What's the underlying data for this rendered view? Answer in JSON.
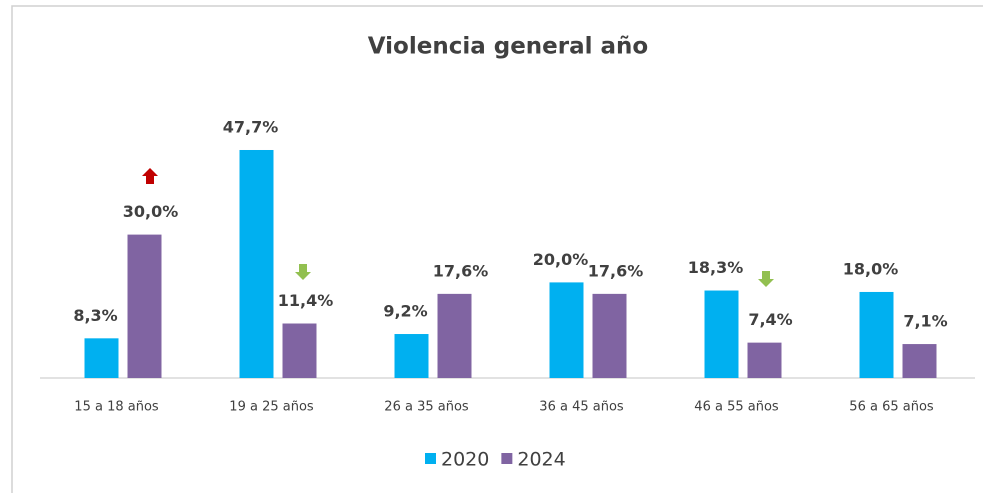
{
  "chart_data": {
    "type": "bar",
    "title": "Violencia general año",
    "categories": [
      "15 a 18 años",
      "19 a 25 años",
      "26 a 35 años",
      "36 a 45 años",
      "46 a 55 años",
      "56 a 65 años"
    ],
    "series": [
      {
        "name": "2020",
        "color": "#00b0f0",
        "values": [
          8.3,
          47.7,
          9.2,
          20.0,
          18.3,
          18.0
        ],
        "value_labels": [
          "8,3%",
          "47,7%",
          "9,2%",
          "20,0%",
          "18,3%",
          "18,0%"
        ]
      },
      {
        "name": "2024",
        "color": "#8064a2",
        "values": [
          30.0,
          11.4,
          17.6,
          17.6,
          7.4,
          7.1
        ],
        "value_labels": [
          "30,0%",
          "11,4%",
          "17,6%",
          "17,6%",
          "7,4%",
          "7,1%"
        ]
      }
    ],
    "ylim": [
      0,
      50
    ],
    "legend": "bottom"
  }
}
